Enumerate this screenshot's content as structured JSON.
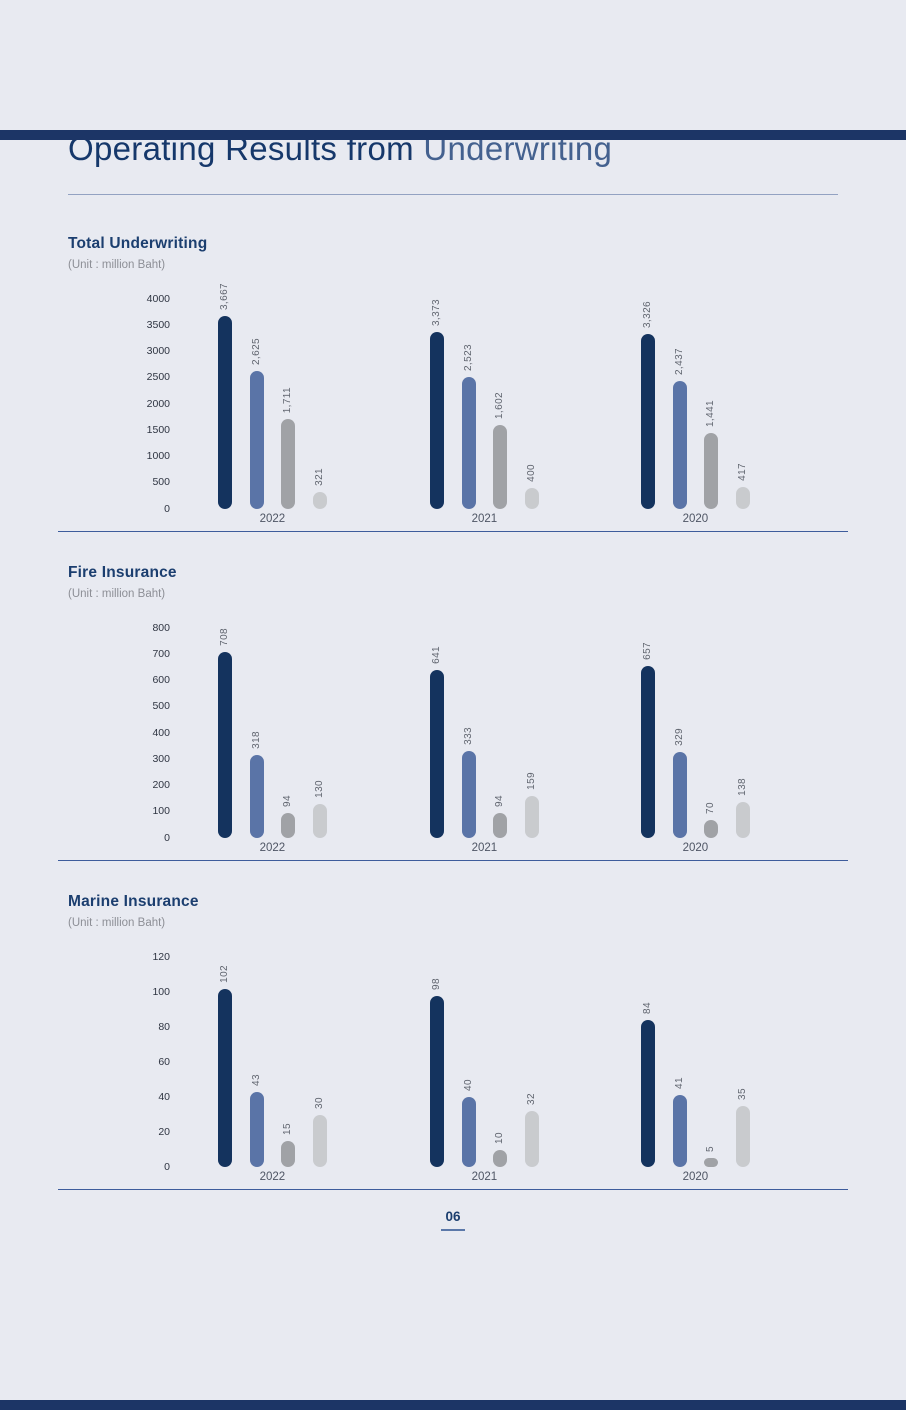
{
  "page": {
    "title_part1": "Operating Results from ",
    "title_part2": "Underwriting",
    "page_number": "06",
    "background_color": "#e8eaf1",
    "accent_navy": "#16386b",
    "band_color": "#1c3566"
  },
  "bar_colors": [
    "#14335e",
    "#5a74a7",
    "#a0a2a6",
    "#c9cbce"
  ],
  "chart_data": [
    {
      "type": "bar",
      "title": "Total Underwriting",
      "unit_label": "(Unit : million Baht)",
      "categories": [
        "2022",
        "2021",
        "2020"
      ],
      "series": [
        {
          "values": [
            3667,
            3373,
            3326
          ],
          "labels": [
            "3,667",
            "3,373",
            "3,326"
          ]
        },
        {
          "values": [
            2625,
            2523,
            2437
          ],
          "labels": [
            "2,625",
            "2,523",
            "2,437"
          ]
        },
        {
          "values": [
            1711,
            1602,
            1441
          ],
          "labels": [
            "1,711",
            "1,602",
            "1,441"
          ]
        },
        {
          "values": [
            321,
            400,
            417
          ],
          "labels": [
            "321",
            "400",
            "417"
          ]
        }
      ],
      "ylim": [
        0,
        4000
      ],
      "ystep": 500,
      "legend": "none",
      "grid": "off"
    },
    {
      "type": "bar",
      "title": "Fire Insurance",
      "unit_label": "(Unit : million Baht)",
      "categories": [
        "2022",
        "2021",
        "2020"
      ],
      "series": [
        {
          "values": [
            708,
            641,
            657
          ],
          "labels": [
            "708",
            "641",
            "657"
          ]
        },
        {
          "values": [
            318,
            333,
            329
          ],
          "labels": [
            "318",
            "333",
            "329"
          ]
        },
        {
          "values": [
            94,
            94,
            70
          ],
          "labels": [
            "94",
            "94",
            "70"
          ]
        },
        {
          "values": [
            130,
            159,
            138
          ],
          "labels": [
            "130",
            "159",
            "138"
          ]
        }
      ],
      "ylim": [
        0,
        800
      ],
      "ystep": 100,
      "legend": "none",
      "grid": "off"
    },
    {
      "type": "bar",
      "title": "Marine Insurance",
      "unit_label": "(Unit : million Baht)",
      "categories": [
        "2022",
        "2021",
        "2020"
      ],
      "series": [
        {
          "values": [
            102,
            98,
            84
          ],
          "labels": [
            "102",
            "98",
            "84"
          ]
        },
        {
          "values": [
            43,
            40,
            41
          ],
          "labels": [
            "43",
            "40",
            "41"
          ]
        },
        {
          "values": [
            15,
            10,
            5
          ],
          "labels": [
            "15",
            "10",
            "5"
          ]
        },
        {
          "values": [
            30,
            32,
            35
          ],
          "labels": [
            "30",
            "32",
            "35"
          ]
        }
      ],
      "ylim": [
        0,
        120
      ],
      "ystep": 20,
      "legend": "none",
      "grid": "off"
    }
  ]
}
